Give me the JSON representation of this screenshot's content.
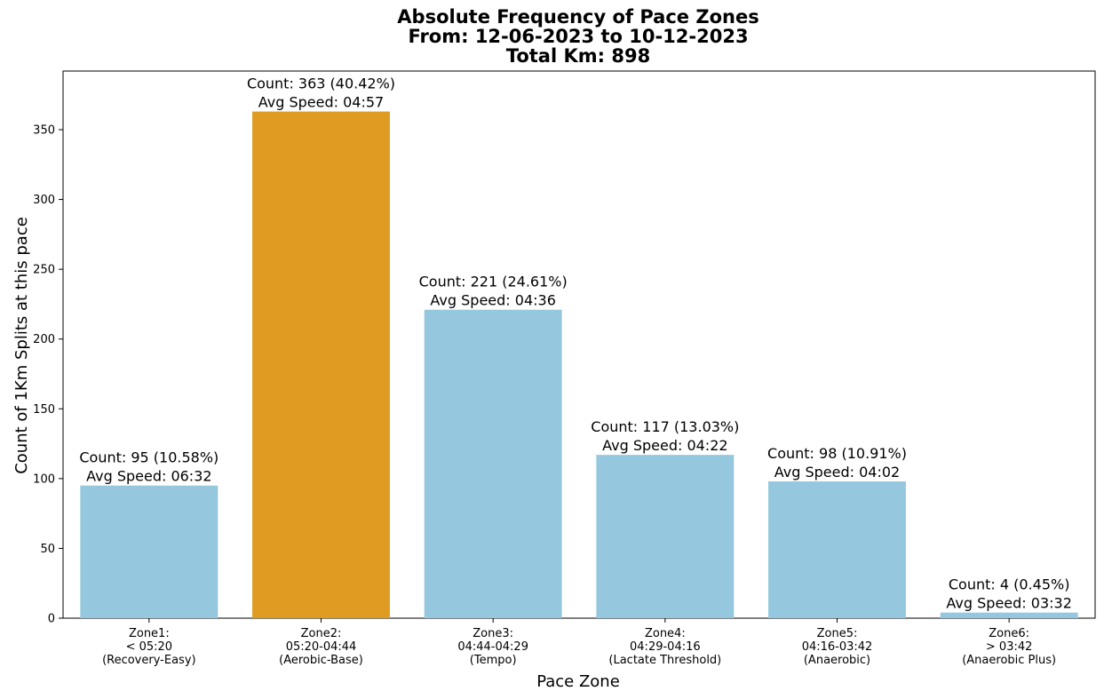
{
  "chart_data": {
    "type": "bar",
    "title_lines": [
      "Absolute Frequency of Pace Zones",
      "From: 12-06-2023 to 10-12-2023",
      "Total Km: 898"
    ],
    "xlabel": "Pace Zone",
    "ylabel": "Count of 1Km Splits at this pace",
    "ylim": [
      0,
      392
    ],
    "yticks": [
      0,
      50,
      100,
      150,
      200,
      250,
      300,
      350
    ],
    "grid": false,
    "categories": [
      [
        "Zone1:",
        "< 05:20",
        "(Recovery-Easy)"
      ],
      [
        "Zone2:",
        "05:20-04:44",
        "(Aerobic-Base)"
      ],
      [
        "Zone3:",
        "04:44-04:29",
        "(Tempo)"
      ],
      [
        "Zone4:",
        "04:29-04:16",
        "(Lactate Threshold)"
      ],
      [
        "Zone5:",
        "04:16-03:42",
        "(Anaerobic)"
      ],
      [
        "Zone6:",
        "> 03:42",
        "(Anaerobic Plus)"
      ]
    ],
    "values": [
      95,
      363,
      221,
      117,
      98,
      4
    ],
    "bar_labels": [
      [
        "Count: 95 (10.58%)",
        "Avg Speed: 06:32"
      ],
      [
        "Count: 363 (40.42%)",
        "Avg Speed: 04:57"
      ],
      [
        "Count: 221 (24.61%)",
        "Avg Speed: 04:36"
      ],
      [
        "Count: 117 (13.03%)",
        "Avg Speed: 04:22"
      ],
      [
        "Count: 98 (10.91%)",
        "Avg Speed: 04:02"
      ],
      [
        "Count: 4 (0.45%)",
        "Avg Speed: 03:32"
      ]
    ],
    "colors": [
      "#95c8de",
      "#e09c22",
      "#95c8de",
      "#95c8de",
      "#95c8de",
      "#95c8de"
    ]
  }
}
